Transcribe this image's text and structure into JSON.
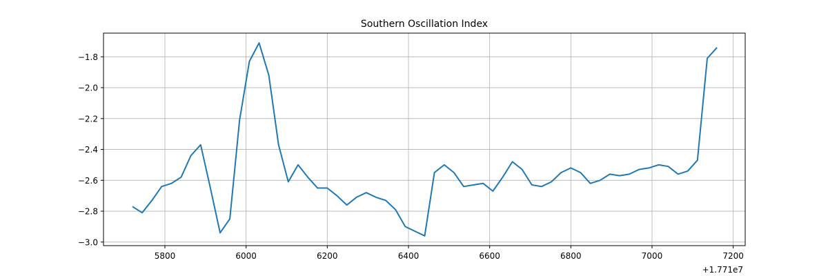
{
  "chart_data": {
    "type": "line",
    "title": "Southern Oscillation Index",
    "xlabel": "",
    "ylabel": "",
    "x_offset_label": "+1.771e7",
    "xlim": [
      5650,
      7230
    ],
    "ylim": [
      -3.025,
      -1.655
    ],
    "xticks": [
      5800,
      6000,
      6200,
      6400,
      6600,
      6800,
      7000,
      7200
    ],
    "yticks": [
      -3.0,
      -2.8,
      -2.6,
      -2.4,
      -2.2,
      -2.0,
      -1.8
    ],
    "ytick_labels": [
      "−3.0",
      "−2.8",
      "−2.6",
      "−2.4",
      "−2.2",
      "−2.0",
      "−1.8"
    ],
    "grid": true,
    "line_color": "#1f77b4",
    "series": [
      {
        "name": "Southern Oscillation Index",
        "x": [
          5720,
          5744,
          5768,
          5792,
          5816,
          5840,
          5864,
          5888,
          5912,
          5936,
          5960,
          5984,
          6008,
          6032,
          6056,
          6080,
          6104,
          6128,
          6152,
          6176,
          6200,
          6224,
          6248,
          6272,
          6296,
          6320,
          6344,
          6368,
          6392,
          6416,
          6440,
          6464,
          6488,
          6512,
          6536,
          6560,
          6584,
          6608,
          6632,
          6656,
          6680,
          6704,
          6728,
          6752,
          6776,
          6800,
          6824,
          6848,
          6872,
          6896,
          6920,
          6944,
          6968,
          6992,
          7016,
          7040,
          7064,
          7088,
          7112,
          7136,
          7160
        ],
        "values": [
          -2.77,
          -2.81,
          -2.73,
          -2.64,
          -2.62,
          -2.58,
          -2.44,
          -2.37,
          -2.65,
          -2.94,
          -2.85,
          -2.21,
          -1.83,
          -1.71,
          -1.92,
          -2.37,
          -2.61,
          -2.5,
          -2.58,
          -2.65,
          -2.65,
          -2.7,
          -2.76,
          -2.71,
          -2.68,
          -2.71,
          -2.73,
          -2.79,
          -2.9,
          -2.93,
          -2.96,
          -2.55,
          -2.5,
          -2.55,
          -2.64,
          -2.63,
          -2.62,
          -2.67,
          -2.58,
          -2.48,
          -2.53,
          -2.63,
          -2.64,
          -2.61,
          -2.55,
          -2.52,
          -2.55,
          -2.62,
          -2.6,
          -2.56,
          -2.57,
          -2.56,
          -2.53,
          -2.52,
          -2.5,
          -2.51,
          -2.56,
          -2.54,
          -2.47,
          -1.81,
          -1.74
        ]
      }
    ]
  }
}
